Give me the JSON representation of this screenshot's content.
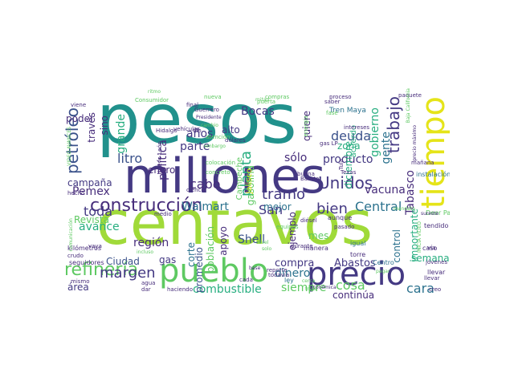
{
  "palette": {
    "teal": "#21918c",
    "indigo": "#443983",
    "lime": "#a0da39",
    "yellow": "#e5e419",
    "purple": "#472d7b",
    "blue": "#3b528b",
    "green": "#5ec962",
    "darkteal": "#2c728e",
    "seagreen": "#28ae80",
    "violet": "#440154"
  },
  "words": [
    {
      "text": "pesos",
      "color": "teal"
    },
    {
      "text": "centavos",
      "color": "lime"
    },
    {
      "text": "millones",
      "color": "indigo"
    },
    {
      "text": "pueblo",
      "color": "green"
    },
    {
      "text": "precio",
      "color": "indigo"
    },
    {
      "text": "tiempo",
      "color": "yellow"
    },
    {
      "text": "construcción",
      "color": "purple"
    },
    {
      "text": "refinería",
      "color": "green"
    },
    {
      "text": "petróleo",
      "color": "blue"
    },
    {
      "text": "margen",
      "color": "indigo"
    },
    {
      "text": "trabajo",
      "color": "indigo"
    },
    {
      "text": "Pemex",
      "color": "purple"
    },
    {
      "text": "litro",
      "color": "blue"
    },
    {
      "text": "cabo",
      "color": "purple"
    },
    {
      "text": "Unidos",
      "color": "indigo"
    },
    {
      "text": "deuda",
      "color": "blue"
    },
    {
      "text": "bien",
      "color": "indigo"
    },
    {
      "text": "Central",
      "color": "darkteal"
    },
    {
      "text": "toda",
      "color": "indigo"
    },
    {
      "text": "avance",
      "color": "seagreen"
    },
    {
      "text": "Walmart",
      "color": "darkteal"
    },
    {
      "text": "combustible",
      "color": "seagreen"
    },
    {
      "text": "tramo",
      "color": "indigo"
    },
    {
      "text": "San",
      "color": "indigo"
    },
    {
      "text": "vacuna",
      "color": "purple"
    },
    {
      "text": "Shell",
      "color": "blue"
    },
    {
      "text": "Abastos",
      "color": "indigo"
    },
    {
      "text": "cara",
      "color": "darkteal"
    },
    {
      "text": "cosa",
      "color": "green"
    },
    {
      "text": "siempre",
      "color": "green"
    },
    {
      "text": "dinero",
      "color": "darkteal"
    },
    {
      "text": "compra",
      "color": "indigo"
    },
    {
      "text": "producto",
      "color": "indigo"
    },
    {
      "text": "sólo",
      "color": "purple"
    },
    {
      "text": "planta",
      "color": "seagreen"
    },
    {
      "text": "gente",
      "color": "darkteal"
    },
    {
      "text": "gobierno",
      "color": "seagreen"
    },
    {
      "text": "Bocas",
      "color": "indigo"
    },
    {
      "text": "años",
      "color": "indigo"
    },
    {
      "text": "política",
      "color": "purple"
    },
    {
      "text": "campaña",
      "color": "indigo"
    },
    {
      "text": "grande",
      "color": "seagreen"
    },
    {
      "text": "través",
      "color": "purple"
    },
    {
      "text": "sino",
      "color": "purple"
    },
    {
      "text": "poder",
      "color": "purple"
    },
    {
      "text": "enero",
      "color": "purple"
    },
    {
      "text": "parte",
      "color": "indigo"
    },
    {
      "text": "alto",
      "color": "indigo"
    },
    {
      "text": "región",
      "color": "purple"
    },
    {
      "text": "Ciudad",
      "color": "blue"
    },
    {
      "text": "gas",
      "color": "indigo"
    },
    {
      "text": "área",
      "color": "indigo"
    },
    {
      "text": "Revista",
      "color": "green"
    },
    {
      "text": "mes",
      "color": "green"
    },
    {
      "text": "mejor",
      "color": "darkteal"
    },
    {
      "text": "zona",
      "color": "seagreen"
    },
    {
      "text": "diciembre",
      "color": "seagreen"
    },
    {
      "text": "Tabasco",
      "color": "purple"
    },
    {
      "text": "semana",
      "color": "seagreen"
    },
    {
      "text": "continúa",
      "color": "purple"
    },
    {
      "text": "importante",
      "color": "seagreen"
    },
    {
      "text": "control",
      "color": "darkteal"
    },
    {
      "text": "ejemplo",
      "color": "purple"
    },
    {
      "text": "quiere",
      "color": "purple"
    },
    {
      "text": "gasolina",
      "color": "green"
    },
    {
      "text": "promedio",
      "color": "blue"
    },
    {
      "text": "corte",
      "color": "darkteal"
    },
    {
      "text": "apoyo",
      "color": "purple"
    },
    {
      "text": "población",
      "color": "green"
    },
    {
      "text": "Campeche",
      "color": "green"
    },
    {
      "text": "acuerdo",
      "color": "seagreen"
    },
    {
      "text": "Tren Maya",
      "color": "darkteal"
    },
    {
      "text": "Deer Park",
      "color": "green"
    },
    {
      "text": "Jalisco",
      "color": "yellow"
    },
    {
      "text": "kilómetros",
      "color": "purple"
    },
    {
      "text": "seguidores",
      "color": "purple"
    },
    {
      "text": "instalación",
      "color": "darkteal"
    },
    {
      "text": "llevar",
      "color": "purple"
    },
    {
      "text": "tendido",
      "color": "purple"
    },
    {
      "text": "aunque",
      "color": "purple"
    },
    {
      "text": "caso",
      "color": "purple"
    },
    {
      "text": "torre",
      "color": "purple"
    },
    {
      "text": "manera",
      "color": "purple"
    },
    {
      "text": "igual",
      "color": "darkteal"
    },
    {
      "text": "ley",
      "color": "darkteal"
    },
    {
      "text": "Centro",
      "color": "darkteal"
    },
    {
      "text": "llevar",
      "color": "purple"
    },
    {
      "text": "jóvenes",
      "color": "purple"
    },
    {
      "text": "Hidalgo",
      "color": "purple"
    },
    {
      "text": "Nuevo León",
      "color": "purple"
    },
    {
      "text": "ciencia",
      "color": "purple"
    },
    {
      "text": "medio",
      "color": "purple"
    },
    {
      "text": "crudo",
      "color": "purple"
    },
    {
      "text": "hecho",
      "color": "purple"
    },
    {
      "text": "mismo",
      "color": "purple"
    },
    {
      "text": "agua",
      "color": "purple"
    },
    {
      "text": "dar",
      "color": "purple"
    },
    {
      "text": "viene",
      "color": "purple"
    },
    {
      "text": "vaya",
      "color": "purple"
    },
    {
      "text": "final",
      "color": "purple"
    },
    {
      "text": "Guerrero",
      "color": "purple"
    },
    {
      "text": "vehículos",
      "color": "purple"
    },
    {
      "text": "dólares",
      "color": "purple"
    },
    {
      "text": "diésel",
      "color": "purple"
    },
    {
      "text": "buena",
      "color": "purple"
    },
    {
      "text": "Barato",
      "color": "purple"
    },
    {
      "text": "gas LP",
      "color": "purple"
    },
    {
      "text": "saber",
      "color": "purple"
    },
    {
      "text": "proceso",
      "color": "purple"
    },
    {
      "text": "paquete",
      "color": "purple"
    },
    {
      "text": "intereses",
      "color": "purple"
    },
    {
      "text": "reporte",
      "color": "purple"
    },
    {
      "text": "cada",
      "color": "purple"
    },
    {
      "text": "creo",
      "color": "purple"
    },
    {
      "text": "haciendo",
      "color": "purple"
    },
    {
      "text": "vía",
      "color": "purple"
    },
    {
      "text": "pasado",
      "color": "purple"
    },
    {
      "text": "mañana",
      "color": "purple"
    },
    {
      "text": "Consumidor",
      "color": "green"
    },
    {
      "text": "nueva",
      "color": "green"
    },
    {
      "text": "compras",
      "color": "green"
    },
    {
      "text": "fase",
      "color": "green"
    },
    {
      "text": "energía",
      "color": "green"
    },
    {
      "text": "puerta",
      "color": "green"
    },
    {
      "text": "equipos",
      "color": "green"
    },
    {
      "text": "colocación",
      "color": "green"
    },
    {
      "text": "concreto",
      "color": "green"
    },
    {
      "text": "atención",
      "color": "green"
    },
    {
      "text": "VIDEO AVANCES",
      "color": "green"
    },
    {
      "text": "INICIA VIDEO",
      "color": "green"
    },
    {
      "text": "incluso",
      "color": "green"
    },
    {
      "text": "dio",
      "color": "purple"
    },
    {
      "text": "embargo",
      "color": "green"
    },
    {
      "text": "Tula",
      "color": "purple"
    },
    {
      "text": "comunicación",
      "color": "green"
    },
    {
      "text": "Texas",
      "color": "purple"
    },
    {
      "text": "durante",
      "color": "purple"
    },
    {
      "text": "económica",
      "color": "purple"
    },
    {
      "text": "todavía",
      "color": "purple"
    },
    {
      "text": "base",
      "color": "purple"
    },
    {
      "text": "Baja California",
      "color": "green"
    },
    {
      "text": "precio máximo",
      "color": "purple"
    },
    {
      "text": "sureste",
      "color": "purple"
    },
    {
      "text": "ritmo",
      "color": "green"
    },
    {
      "text": "mitad",
      "color": "green"
    },
    {
      "text": "Presidente",
      "color": "purple"
    },
    {
      "text": "cambio",
      "color": "green"
    },
    {
      "text": "mandato",
      "color": "green"
    },
    {
      "text": "nivel",
      "color": "green"
    },
    {
      "text": "solo",
      "color": "green"
    },
    {
      "text": "pagar",
      "color": "green"
    },
    {
      "text": "cerca",
      "color": "green"
    },
    {
      "text": "trata",
      "color": "green"
    }
  ]
}
